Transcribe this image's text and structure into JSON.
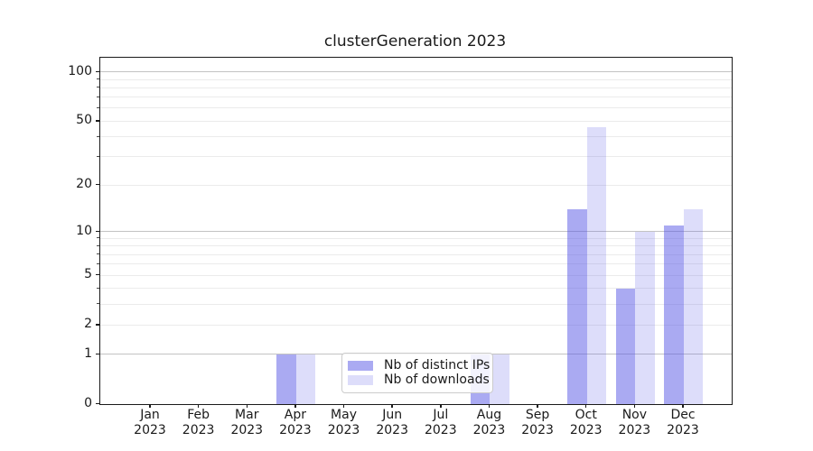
{
  "title": "clusterGeneration 2023",
  "chart_data": {
    "type": "bar",
    "title": "clusterGeneration 2023",
    "categories": [
      "Jan 2023",
      "Feb 2023",
      "Mar 2023",
      "Apr 2023",
      "May 2023",
      "Jun 2023",
      "Jul 2023",
      "Aug 2023",
      "Sep 2023",
      "Oct 2023",
      "Nov 2023",
      "Dec 2023"
    ],
    "category_month_labels": [
      "Jan",
      "Feb",
      "Mar",
      "Apr",
      "May",
      "Jun",
      "Jul",
      "Aug",
      "Sep",
      "Oct",
      "Nov",
      "Dec"
    ],
    "category_year_label": "2023",
    "series": [
      {
        "name": "Nb of distinct IPs",
        "color_rgba": "rgba(85,85,230,0.5)",
        "color_hex": "#a7a7f0",
        "values": [
          0,
          0,
          0,
          1,
          0,
          0,
          0,
          1,
          0,
          14,
          4,
          11
        ]
      },
      {
        "name": "Nb of downloads",
        "color_rgba": "rgba(85,85,230,0.2)",
        "color_hex": "#dcdcf8",
        "values": [
          0,
          0,
          0,
          1,
          0,
          0,
          0,
          1,
          0,
          46,
          10,
          14
        ]
      }
    ],
    "xlabel": "",
    "ylabel": "",
    "y_scale": "log1p",
    "ylim": [
      0,
      122
    ],
    "y_ticks_labeled": [
      0,
      1,
      2,
      5,
      10,
      20,
      50,
      100
    ],
    "y_major_gridlines": [
      1,
      10,
      100
    ],
    "y_minor_gridlines": [
      2,
      3,
      4,
      5,
      6,
      7,
      8,
      9,
      20,
      30,
      40,
      50,
      60,
      70,
      80,
      90
    ],
    "grid": "horizontal major+minor, grid on",
    "legend_position": "lower center",
    "colors": {
      "major_grid": "#c3c3c3",
      "minor_grid": "#ebebeb",
      "spine": "#1a1a1a",
      "text": "#1a1a1a",
      "legend_border": "#cccccc",
      "background": "#ffffff"
    }
  }
}
